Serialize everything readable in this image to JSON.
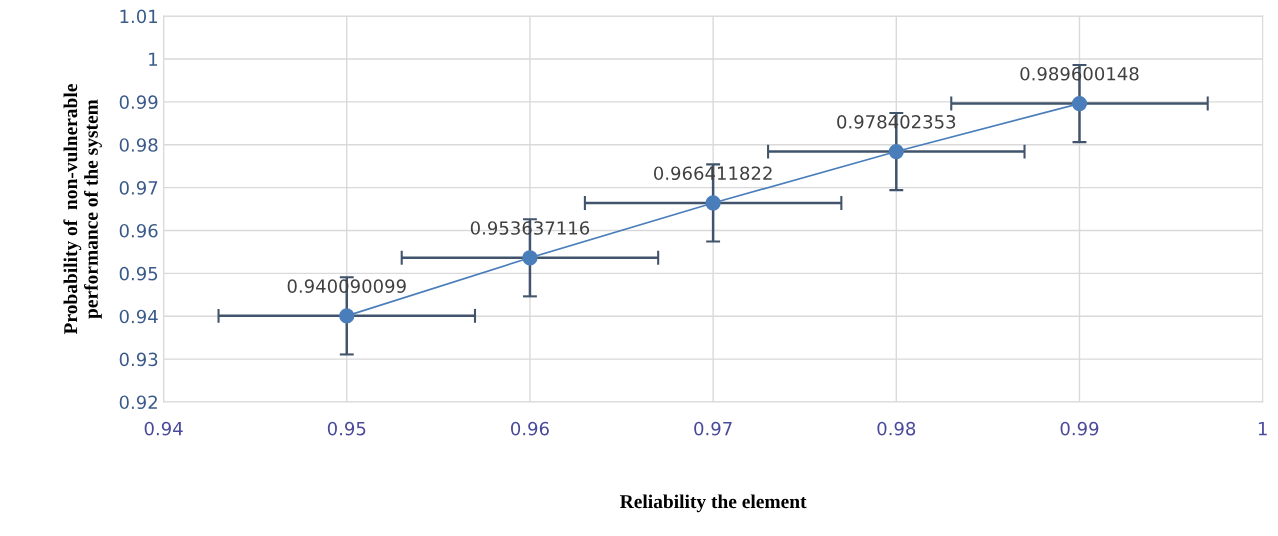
{
  "chart_data": {
    "type": "line",
    "xlabel": "Reliability the element",
    "ylabel": "Probability of  non-vulnerable\nperformance of the system",
    "x": [
      0.95,
      0.96,
      0.97,
      0.98,
      0.99
    ],
    "series": [
      {
        "color": "#4a7ebb",
        "values": [
          0.940090099,
          0.953637116,
          0.966411822,
          0.978402353,
          0.989600148
        ],
        "errors": [
          0.009,
          0.009,
          0.009,
          0.009,
          0.009
        ],
        "xerrors": [
          0.007,
          0.007,
          0.007,
          0.007,
          0.007
        ]
      }
    ],
    "data_labels": true,
    "marker": "circle",
    "line_style": "solid",
    "grid": true,
    "xlim": [
      0.94,
      1
    ],
    "xticks": [
      0.94,
      0.95,
      0.96,
      0.97,
      0.98,
      0.99,
      1
    ],
    "ylim": [
      0.92,
      1.01
    ],
    "yticks": [
      0.92,
      0.93,
      0.94,
      0.95,
      0.96,
      0.97,
      0.98,
      0.99,
      1,
      1.01
    ]
  }
}
